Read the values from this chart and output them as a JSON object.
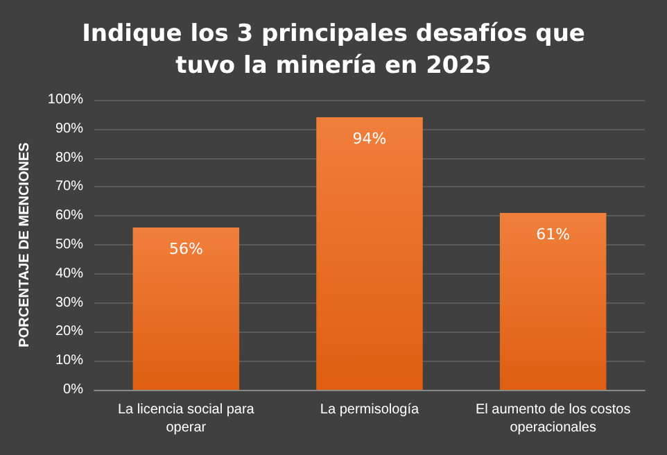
{
  "chart_data": {
    "type": "bar",
    "title": "Indique los 3 principales desafíos que\ntuvo la minería en 2025",
    "ylabel": "PORCENTAJE DE MENCIONES",
    "categories": [
      "La licencia social para\noperar",
      "La permisología",
      "El aumento de los costos\noperacionales"
    ],
    "values": [
      56,
      94,
      61
    ],
    "value_labels": [
      "56%",
      "94%",
      "61%"
    ],
    "color": "#f07f3c",
    "ylim": [
      0,
      100
    ],
    "yticks": [
      {
        "value": 0,
        "label": "0%"
      },
      {
        "value": 10,
        "label": "10%"
      },
      {
        "value": 20,
        "label": "20%"
      },
      {
        "value": 30,
        "label": "30%"
      },
      {
        "value": 40,
        "label": "40%"
      },
      {
        "value": 50,
        "label": "50%"
      },
      {
        "value": 60,
        "label": "60%"
      },
      {
        "value": 70,
        "label": "70%"
      },
      {
        "value": 80,
        "label": "80%"
      },
      {
        "value": 90,
        "label": "90%"
      },
      {
        "value": 100,
        "label": "100%"
      }
    ],
    "grid": true
  }
}
